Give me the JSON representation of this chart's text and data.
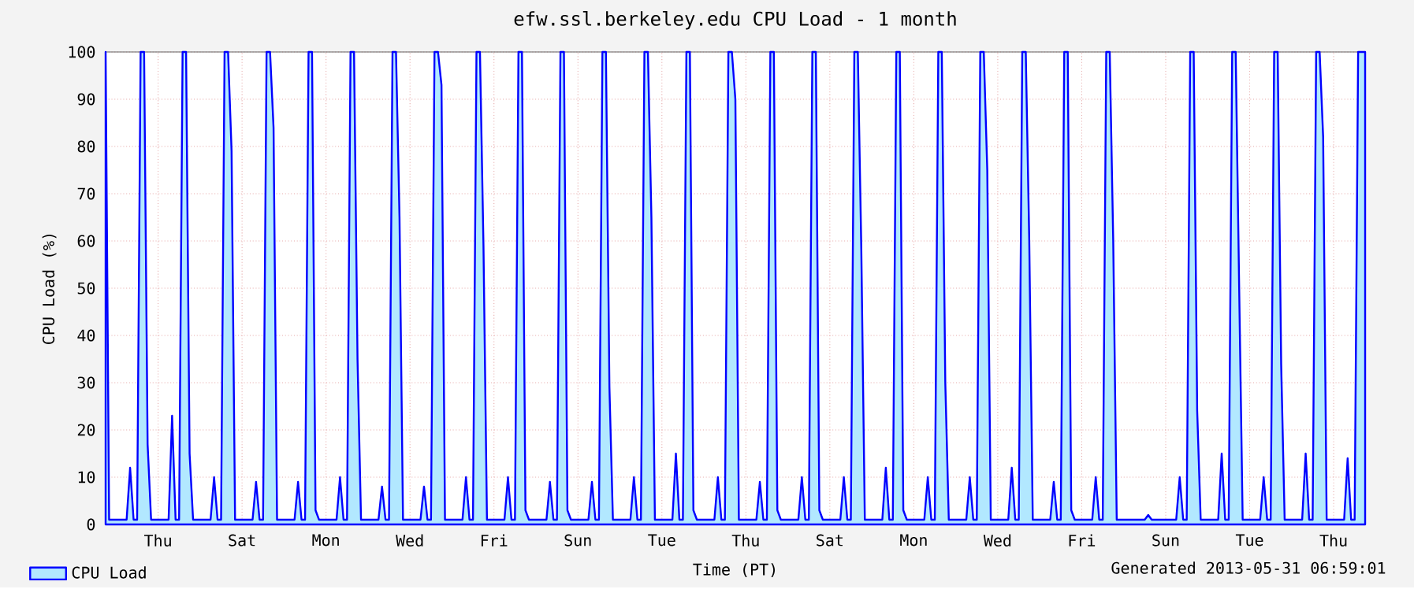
{
  "chart_data": {
    "type": "area",
    "title": "efw.ssl.berkeley.edu CPU Load - 1 month",
    "xlabel": "Time (PT)",
    "ylabel": "CPU Load (%)",
    "annotations": [
      "Generated 2013-05-31 06:59:01"
    ],
    "categories": [
      null,
      null,
      null,
      null,
      null,
      null,
      null,
      null,
      null,
      null,
      null,
      null,
      null,
      null,
      null,
      "Thu",
      null,
      null,
      null,
      null,
      null,
      null,
      null,
      null,
      null,
      null,
      null,
      null,
      null,
      null,
      null,
      null,
      null,
      null,
      null,
      null,
      null,
      null,
      null,
      "Sat",
      null,
      null,
      null,
      null,
      null,
      null,
      null,
      null,
      null,
      null,
      null,
      null,
      null,
      null,
      null,
      null,
      null,
      null,
      null,
      null,
      null,
      null,
      null,
      "Mon",
      null,
      null,
      null,
      null,
      null,
      null,
      null,
      null,
      null,
      null,
      null,
      null,
      null,
      null,
      null,
      null,
      null,
      null,
      null,
      null,
      null,
      null,
      null,
      "Wed",
      null,
      null,
      null,
      null,
      null,
      null,
      null,
      null,
      null,
      null,
      null,
      null,
      null,
      null,
      null,
      null,
      null,
      null,
      null,
      null,
      null,
      null,
      null,
      "Fri",
      null,
      null,
      null,
      null,
      null,
      null,
      null,
      null,
      null,
      null,
      null,
      null,
      null,
      null,
      null,
      null,
      null,
      null,
      null,
      null,
      null,
      null,
      null,
      "Sun",
      null,
      null,
      null,
      null,
      null,
      null,
      null,
      null,
      null,
      null,
      null,
      null,
      null,
      null,
      null,
      null,
      null,
      null,
      null,
      null,
      null,
      null,
      null,
      "Tue",
      null,
      null,
      null,
      null,
      null,
      null,
      null,
      null,
      null,
      null,
      null,
      null,
      null,
      null,
      null,
      null,
      null,
      null,
      null,
      null,
      null,
      null,
      null,
      "Thu",
      null,
      null,
      null,
      null,
      null,
      null,
      null,
      null,
      null,
      null,
      null,
      null,
      null,
      null,
      null,
      null,
      null,
      null,
      null,
      null,
      null,
      null,
      null,
      "Sat",
      null,
      null,
      null,
      null,
      null,
      null,
      null,
      null,
      null,
      null,
      null,
      null,
      null,
      null,
      null,
      null,
      null,
      null,
      null,
      null,
      null,
      null,
      null,
      "Mon",
      null,
      null,
      null,
      null,
      null,
      null,
      null,
      null,
      null,
      null,
      null,
      null,
      null,
      null,
      null,
      null,
      null,
      null,
      null,
      null,
      null,
      null,
      null,
      "Wed",
      null,
      null,
      null,
      null,
      null,
      null,
      null,
      null,
      null,
      null,
      null,
      null,
      null,
      null,
      null,
      null,
      null,
      null,
      null,
      null,
      null,
      null,
      null,
      "Fri",
      null,
      null,
      null,
      null,
      null,
      null,
      null,
      null,
      null,
      null,
      null,
      null,
      null,
      null,
      null,
      null,
      null,
      null,
      null,
      null,
      null,
      null,
      null,
      "Sun",
      null,
      null,
      null,
      null,
      null,
      null,
      null,
      null,
      null,
      null,
      null,
      null,
      null,
      null,
      null,
      null,
      null,
      null,
      null,
      null,
      null,
      null,
      null,
      "Tue",
      null,
      null,
      null,
      null,
      null,
      null,
      null,
      null,
      null,
      null,
      null,
      null,
      null,
      null,
      null,
      null,
      null,
      null,
      null,
      null,
      null,
      null,
      null,
      "Thu",
      null,
      null,
      null,
      null,
      null,
      null,
      null,
      null,
      null
    ],
    "ylim": [
      0,
      100
    ],
    "yticks": [
      0,
      10,
      20,
      30,
      40,
      50,
      60,
      70,
      80,
      90,
      100
    ],
    "grid": true,
    "legend": "bottom left",
    "series": [
      {
        "name": "CPU Load",
        "color": "#0000ff",
        "values": [
          100,
          1,
          1,
          1,
          1,
          1,
          1,
          12,
          1,
          1,
          100,
          100,
          17,
          1,
          1,
          1,
          1,
          1,
          1,
          23,
          1,
          1,
          100,
          100,
          15,
          1,
          1,
          1,
          1,
          1,
          1,
          10,
          1,
          1,
          100,
          100,
          79,
          1,
          1,
          1,
          1,
          1,
          1,
          9,
          1,
          1,
          100,
          100,
          84,
          1,
          1,
          1,
          1,
          1,
          1,
          9,
          1,
          1,
          100,
          100,
          3,
          1,
          1,
          1,
          1,
          1,
          1,
          10,
          1,
          1,
          100,
          100,
          35,
          1,
          1,
          1,
          1,
          1,
          1,
          8,
          1,
          1,
          100,
          100,
          65,
          1,
          1,
          1,
          1,
          1,
          1,
          8,
          1,
          1,
          100,
          100,
          93,
          1,
          1,
          1,
          1,
          1,
          1,
          10,
          1,
          1,
          100,
          100,
          59,
          1,
          1,
          1,
          1,
          1,
          1,
          10,
          1,
          1,
          100,
          100,
          3,
          1,
          1,
          1,
          1,
          1,
          1,
          9,
          1,
          1,
          100,
          100,
          3,
          1,
          1,
          1,
          1,
          1,
          1,
          9,
          1,
          1,
          100,
          100,
          29,
          1,
          1,
          1,
          1,
          1,
          1,
          10,
          1,
          1,
          100,
          100,
          65,
          1,
          1,
          1,
          1,
          1,
          1,
          15,
          1,
          1,
          100,
          100,
          3,
          1,
          1,
          1,
          1,
          1,
          1,
          10,
          1,
          1,
          100,
          100,
          90,
          1,
          1,
          1,
          1,
          1,
          1,
          9,
          1,
          1,
          100,
          100,
          3,
          1,
          1,
          1,
          1,
          1,
          1,
          10,
          1,
          1,
          100,
          100,
          3,
          1,
          1,
          1,
          1,
          1,
          1,
          10,
          1,
          1,
          100,
          100,
          58,
          1,
          1,
          1,
          1,
          1,
          1,
          12,
          1,
          1,
          100,
          100,
          3,
          1,
          1,
          1,
          1,
          1,
          1,
          10,
          1,
          1,
          100,
          100,
          30,
          1,
          1,
          1,
          1,
          1,
          1,
          10,
          1,
          1,
          100,
          100,
          75,
          1,
          1,
          1,
          1,
          1,
          1,
          12,
          1,
          1,
          100,
          100,
          60,
          1,
          1,
          1,
          1,
          1,
          1,
          9,
          1,
          1,
          100,
          100,
          3,
          1,
          1,
          1,
          1,
          1,
          1,
          10,
          1,
          1,
          100,
          100,
          60,
          1,
          1,
          1,
          1,
          1,
          1,
          1,
          1,
          1,
          2,
          1,
          1,
          1,
          1,
          1,
          1,
          1,
          1,
          10,
          1,
          1,
          100,
          100,
          24,
          1,
          1,
          1,
          1,
          1,
          1,
          15,
          1,
          1,
          100,
          100,
          50,
          1,
          1,
          1,
          1,
          1,
          1,
          10,
          1,
          1,
          100,
          100,
          34,
          1,
          1,
          1,
          1,
          1,
          1,
          15,
          1,
          1,
          100,
          100,
          82,
          1,
          1,
          1,
          1,
          1,
          1,
          14,
          1,
          1,
          100,
          100,
          100
        ]
      }
    ]
  }
}
